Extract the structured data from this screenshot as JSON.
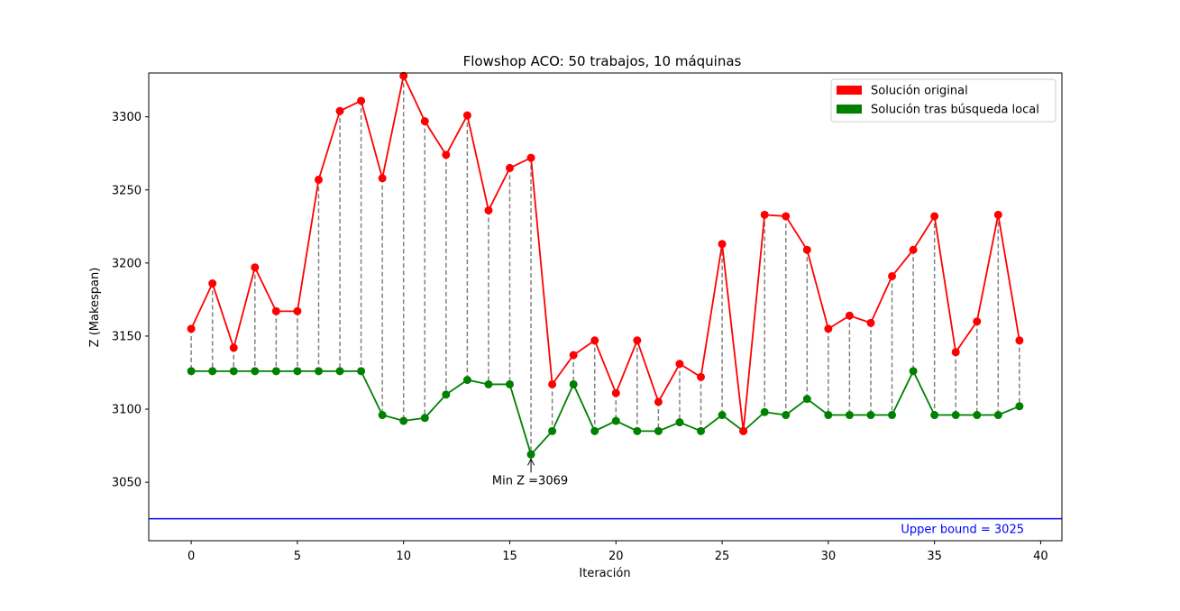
{
  "chart_data": {
    "type": "line",
    "title": "Flowshop ACO: 50 trabajos, 10 máquinas",
    "xlabel": "Iteración",
    "ylabel": "Z (Makespan)",
    "xlim": [
      -2,
      41
    ],
    "ylim": [
      3010,
      3330
    ],
    "xticks": [
      0,
      5,
      10,
      15,
      20,
      25,
      30,
      35,
      40
    ],
    "yticks": [
      3050,
      3100,
      3150,
      3200,
      3250,
      3300
    ],
    "grid": false,
    "legend_position": "top-right",
    "x": [
      0,
      1,
      2,
      3,
      4,
      5,
      6,
      7,
      8,
      9,
      10,
      11,
      12,
      13,
      14,
      15,
      16,
      17,
      18,
      19,
      20,
      21,
      22,
      23,
      24,
      25,
      26,
      27,
      28,
      29,
      30,
      31,
      32,
      33,
      34,
      35,
      36,
      37,
      38,
      39
    ],
    "series": [
      {
        "name": "Solución original",
        "color": "#ff0000",
        "values": [
          3155,
          3186,
          3142,
          3197,
          3167,
          3167,
          3257,
          3304,
          3311,
          3258,
          3328,
          3297,
          3274,
          3301,
          3236,
          3265,
          3272,
          3117,
          3137,
          3147,
          3111,
          3147,
          3105,
          3131,
          3122,
          3213,
          3085,
          3233,
          3232,
          3209,
          3155,
          3164,
          3159,
          3191,
          3209,
          3232,
          3139,
          3160,
          3233,
          3147
        ]
      },
      {
        "name": "Solución tras búsqueda local",
        "color": "#008000",
        "values": [
          3126,
          3126,
          3126,
          3126,
          3126,
          3126,
          3126,
          3126,
          3126,
          3096,
          3092,
          3094,
          3110,
          3120,
          3117,
          3117,
          3069,
          3085,
          3117,
          3085,
          3092,
          3085,
          3085,
          3091,
          3085,
          3096,
          3085,
          3098,
          3096,
          3107,
          3096,
          3096,
          3096,
          3096,
          3126,
          3096,
          3096,
          3096,
          3096,
          3102
        ]
      }
    ],
    "annotation": {
      "text": "Min Z =3069",
      "x": 16,
      "y": 3069
    },
    "upper_bound": {
      "value": 3025,
      "label": "Upper bound = 3025",
      "color": "#0000ff"
    }
  }
}
